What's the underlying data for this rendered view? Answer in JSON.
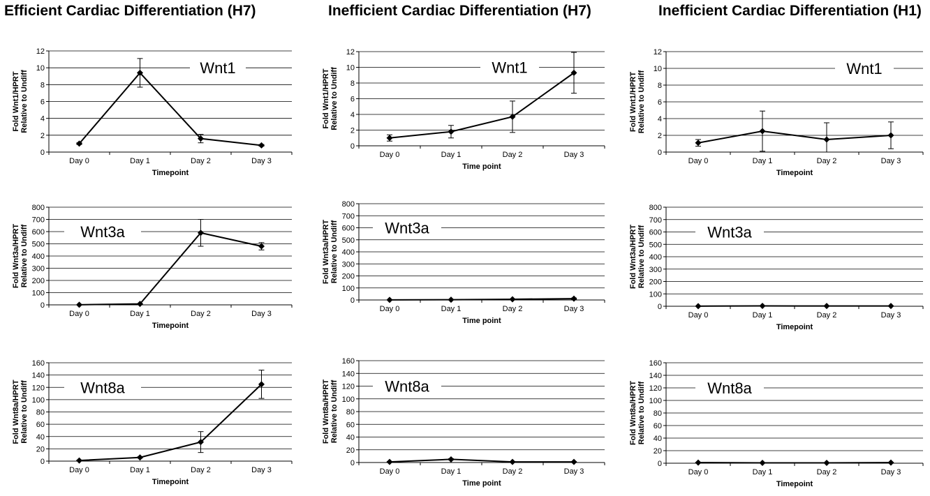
{
  "figure": {
    "column_titles": [
      "Efficient Cardiac Differentiation (H7)",
      "Inefficient Cardiac Differentiation (H7)",
      "Inefficient Cardiac Differentiation (H1)"
    ]
  },
  "chart_data": [
    {
      "type": "line",
      "title": "Wnt1",
      "categories": [
        "Day 0",
        "Day 1",
        "Day 2",
        "Day 3"
      ],
      "values": [
        1,
        9.4,
        1.6,
        0.8
      ],
      "error": [
        0.1,
        1.7,
        0.5,
        0.1
      ],
      "xlabel": "Timepoint",
      "ylabel": [
        "Fold Wnt1/HPRT",
        "Relative to Undiff"
      ],
      "ylim": [
        0,
        12
      ],
      "yticks": [
        0,
        2,
        4,
        6,
        8,
        10,
        12
      ],
      "grid": true
    },
    {
      "type": "line",
      "title": "Wnt1",
      "categories": [
        "Day 0",
        "Day 1",
        "Day 2",
        "Day 3"
      ],
      "values": [
        1,
        1.8,
        3.7,
        9.3
      ],
      "error": [
        0.4,
        0.8,
        2.0,
        2.6
      ],
      "xlabel": "Time point",
      "ylabel": [
        "Fold Wnt1/HPRT",
        "Relative to Undiff"
      ],
      "ylim": [
        0,
        12
      ],
      "yticks": [
        0,
        2,
        4,
        6,
        8,
        10,
        12
      ],
      "grid": true
    },
    {
      "type": "line",
      "title": "Wnt1",
      "categories": [
        "Day 0",
        "Day 1",
        "Day 2",
        "Day 3"
      ],
      "values": [
        1.1,
        2.5,
        1.5,
        2.0
      ],
      "error": [
        0.4,
        2.4,
        2.0,
        1.6
      ],
      "xlabel": "Timepoint",
      "ylabel": [
        "Fold Wnt1/HPRT",
        "Relative to Undiff"
      ],
      "ylim": [
        0,
        12
      ],
      "yticks": [
        0,
        2,
        4,
        6,
        8,
        10,
        12
      ],
      "grid": true
    },
    {
      "type": "line",
      "title": "Wnt3a",
      "categories": [
        "Day 0",
        "Day 1",
        "Day 2",
        "Day 3"
      ],
      "values": [
        1,
        8,
        590,
        480
      ],
      "error": [
        0,
        2,
        110,
        30
      ],
      "xlabel": "Timepoint",
      "ylabel": [
        "Fold Wnt3a/HPRT",
        "Relative to Undiff"
      ],
      "ylim": [
        0,
        800
      ],
      "yticks": [
        0,
        100,
        200,
        300,
        400,
        500,
        600,
        700,
        800
      ],
      "grid": true
    },
    {
      "type": "line",
      "title": "Wnt3a",
      "categories": [
        "Day 0",
        "Day 1",
        "Day 2",
        "Day 3"
      ],
      "values": [
        1,
        2,
        6,
        11
      ],
      "error": [
        0,
        1,
        3,
        5
      ],
      "xlabel": "Time point",
      "ylabel": [
        "Fold Wnt3a/HPRT",
        "Relative to Undiff"
      ],
      "ylim": [
        0,
        800
      ],
      "yticks": [
        0,
        100,
        200,
        300,
        400,
        500,
        600,
        700,
        800
      ],
      "grid": true
    },
    {
      "type": "line",
      "title": "Wnt3a",
      "categories": [
        "Day 0",
        "Day 1",
        "Day 2",
        "Day 3"
      ],
      "values": [
        1,
        3,
        2,
        2
      ],
      "error": [
        0,
        1,
        1,
        1
      ],
      "xlabel": "Timepoint",
      "ylabel": [
        "Fold Wnt3a/HPRT",
        "Relative to Undiff"
      ],
      "ylim": [
        0,
        800
      ],
      "yticks": [
        0,
        100,
        200,
        300,
        400,
        500,
        600,
        700,
        800
      ],
      "grid": true
    },
    {
      "type": "line",
      "title": "Wnt8a",
      "categories": [
        "Day 0",
        "Day 1",
        "Day 2",
        "Day 3"
      ],
      "values": [
        1,
        6,
        31,
        125
      ],
      "error": [
        0.5,
        1,
        17,
        23
      ],
      "xlabel": "Timepoint",
      "ylabel": [
        "Fold Wnt8a/HPRT",
        "Relative to Undiff"
      ],
      "ylim": [
        0,
        160
      ],
      "yticks": [
        0,
        20,
        40,
        60,
        80,
        100,
        120,
        140,
        160
      ],
      "grid": true
    },
    {
      "type": "line",
      "title": "Wnt8a",
      "categories": [
        "Day 0",
        "Day 1",
        "Day 2",
        "Day 3"
      ],
      "values": [
        1,
        5,
        1,
        1
      ],
      "error": [
        0.5,
        1,
        0.5,
        0.5
      ],
      "xlabel": "Time point",
      "ylabel": [
        "Fold Wnt8a/HPRT",
        "Relative to Undiff"
      ],
      "ylim": [
        0,
        160
      ],
      "yticks": [
        0,
        20,
        40,
        60,
        80,
        100,
        120,
        140,
        160
      ],
      "grid": true
    },
    {
      "type": "line",
      "title": "Wnt8a",
      "categories": [
        "Day 0",
        "Day 1",
        "Day 2",
        "Day 3"
      ],
      "values": [
        1,
        0.5,
        0.5,
        1
      ],
      "error": [
        0.3,
        0.2,
        0.2,
        0.3
      ],
      "xlabel": "Timepoint",
      "ylabel": [
        "Fold Wnt8a/HPRT",
        "Relative to Undiff"
      ],
      "ylim": [
        0,
        160
      ],
      "yticks": [
        0,
        20,
        40,
        60,
        80,
        100,
        120,
        140,
        160
      ],
      "grid": true
    }
  ]
}
